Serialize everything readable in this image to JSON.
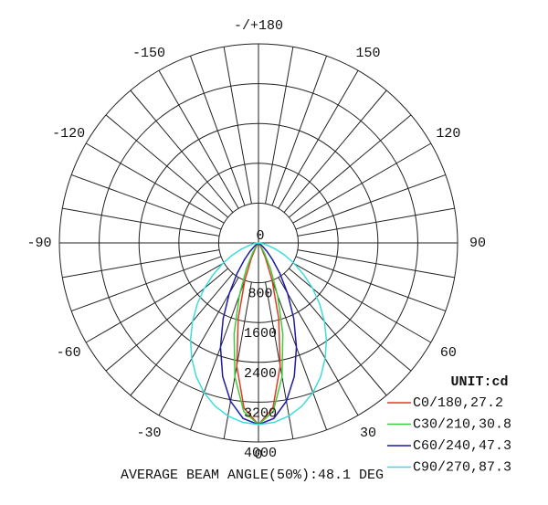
{
  "chart_data": {
    "type": "polar",
    "title": "-/+180",
    "unit_label": "UNIT:cd",
    "footer": "AVERAGE BEAM ANGLE(50%):48.1 DEG",
    "theta_zero": "bottom",
    "rlim": [
      0,
      4000
    ],
    "rticks": [
      0,
      800,
      1600,
      2400,
      3200,
      4000
    ],
    "thetaticks": [
      -150,
      -120,
      -90,
      -60,
      -30,
      0,
      30,
      60,
      90,
      120,
      150,
      {
        "value": 180,
        "label": "-/+180"
      }
    ],
    "grid": true,
    "legend": "lower right",
    "angles": [
      -90,
      -85,
      -80,
      -75,
      -70,
      -65,
      -60,
      -55,
      -50,
      -45,
      -40,
      -35,
      -30,
      -25,
      -20,
      -15,
      -10,
      -5,
      0,
      5,
      10,
      15,
      20,
      25,
      30,
      35,
      40,
      45,
      50,
      55,
      60,
      65,
      70,
      75,
      80,
      85,
      90
    ],
    "series": [
      {
        "name": "C0/180,27.2",
        "color": "#e03a2a",
        "values": [
          0,
          0,
          0,
          0,
          0,
          0,
          0,
          0,
          0,
          0,
          5,
          30,
          110,
          330,
          800,
          1570,
          2510,
          3330,
          3650,
          3330,
          2510,
          1570,
          800,
          330,
          110,
          30,
          5,
          0,
          0,
          0,
          0,
          0,
          0,
          0,
          0,
          0,
          0
        ]
      },
      {
        "name": "C30/210,30.8",
        "color": "#3ccc3c",
        "values": [
          0,
          0,
          0,
          0,
          0,
          0,
          0,
          0,
          0,
          5,
          20,
          80,
          240,
          570,
          1120,
          1890,
          2730,
          3400,
          3650,
          3400,
          2730,
          1890,
          1120,
          570,
          240,
          80,
          20,
          5,
          0,
          0,
          0,
          0,
          0,
          0,
          0,
          0,
          0
        ]
      },
      {
        "name": "C60/240,47.3",
        "color": "#1c1ca4",
        "values": [
          0,
          0,
          0,
          0,
          0,
          0,
          15,
          45,
          110,
          240,
          440,
          750,
          1170,
          1680,
          2230,
          2780,
          3230,
          3540,
          3650,
          3540,
          3230,
          2780,
          2230,
          1680,
          1170,
          750,
          440,
          240,
          110,
          45,
          15,
          0,
          0,
          0,
          0,
          0,
          0
        ]
      },
      {
        "name": "C90/270,87.3",
        "color": "#3edcdc",
        "values": [
          0,
          20,
          90,
          200,
          370,
          580,
          830,
          1110,
          1420,
          1740,
          2060,
          2380,
          2680,
          2960,
          3200,
          3390,
          3530,
          3620,
          3650,
          3620,
          3530,
          3390,
          3200,
          2960,
          2680,
          2380,
          2060,
          1740,
          1420,
          1110,
          830,
          580,
          370,
          200,
          90,
          20,
          0
        ]
      }
    ]
  }
}
